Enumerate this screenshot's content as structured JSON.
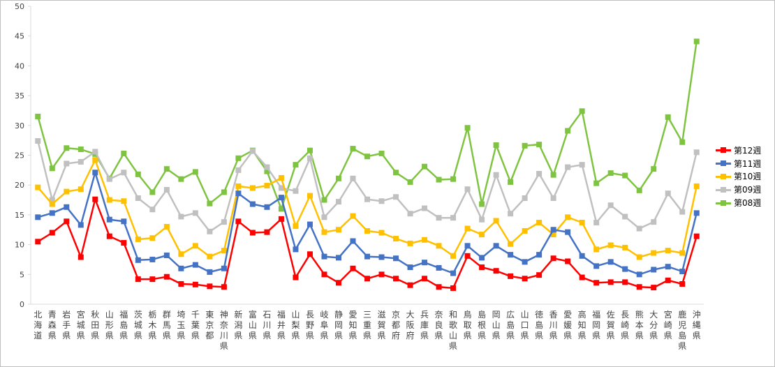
{
  "chart_data": {
    "type": "line",
    "title": "",
    "xlabel": "",
    "ylabel": "",
    "ylim": [
      0,
      50
    ],
    "yticks": [
      0,
      5,
      10,
      15,
      20,
      25,
      30,
      35,
      40,
      45,
      50
    ],
    "grid": false,
    "legend_position": "right",
    "categories": [
      "北海道",
      "青森県",
      "岩手県",
      "宮城県",
      "秋田県",
      "山形県",
      "福島県",
      "茨城県",
      "栃木県",
      "群馬県",
      "埼玉県",
      "千葉県",
      "東京都",
      "神奈川県",
      "新潟県",
      "富山県",
      "石川県",
      "福井県",
      "山梨県",
      "長野県",
      "岐阜県",
      "静岡県",
      "愛知県",
      "三重県",
      "滋賀県",
      "京都府",
      "大阪府",
      "兵庫県",
      "奈良県",
      "和歌山県",
      "鳥取県",
      "島根県",
      "岡山県",
      "広島県",
      "山口県",
      "徳島県",
      "香川県",
      "愛媛県",
      "高知県",
      "福岡県",
      "佐賀県",
      "長崎県",
      "熊本県",
      "大分県",
      "宮崎県",
      "鹿児島県",
      "沖縄県"
    ],
    "series": [
      {
        "name": "第12週",
        "color": "#ff0000",
        "values": [
          10.5,
          12.0,
          13.9,
          7.9,
          17.6,
          11.4,
          10.3,
          4.2,
          4.2,
          4.6,
          3.4,
          3.3,
          3.0,
          2.9,
          13.9,
          12.0,
          12.1,
          14.3,
          4.5,
          8.4,
          5.0,
          3.6,
          6.0,
          4.3,
          5.0,
          4.3,
          3.2,
          4.3,
          2.9,
          2.7,
          8.1,
          6.2,
          5.6,
          4.7,
          4.3,
          4.9,
          7.7,
          7.2,
          4.5,
          3.6,
          3.7,
          3.7,
          2.9,
          2.8,
          4.0,
          3.4,
          11.4
        ]
      },
      {
        "name": "第11週",
        "color": "#4472c4",
        "values": [
          14.6,
          15.3,
          16.3,
          13.3,
          22.1,
          14.2,
          13.9,
          7.4,
          7.5,
          8.2,
          6.0,
          6.6,
          5.4,
          6.0,
          18.6,
          16.8,
          16.3,
          17.9,
          9.2,
          13.4,
          8.0,
          7.8,
          10.6,
          8.0,
          7.9,
          7.7,
          6.2,
          7.0,
          6.1,
          5.2,
          9.8,
          7.8,
          9.8,
          8.3,
          7.1,
          8.3,
          12.5,
          12.1,
          8.1,
          6.4,
          7.1,
          5.9,
          5.0,
          5.8,
          6.3,
          5.5,
          15.3
        ]
      },
      {
        "name": "第10週",
        "color": "#ffc000",
        "values": [
          19.6,
          16.8,
          18.9,
          19.3,
          24.2,
          17.5,
          17.3,
          10.9,
          11.1,
          13.0,
          8.4,
          9.8,
          8.0,
          9.0,
          19.8,
          19.5,
          19.9,
          21.2,
          13.1,
          18.2,
          12.1,
          12.5,
          14.8,
          12.3,
          12.0,
          11.0,
          10.2,
          10.8,
          9.8,
          8.1,
          12.7,
          11.7,
          14.0,
          10.1,
          12.3,
          13.7,
          11.7,
          14.6,
          13.7,
          9.2,
          9.9,
          9.5,
          7.9,
          8.6,
          9.0,
          8.6,
          19.8
        ]
      },
      {
        "name": "第09週",
        "color": "#c0c0c0",
        "values": [
          27.4,
          17.5,
          23.6,
          23.9,
          25.6,
          21.0,
          22.1,
          17.8,
          15.9,
          19.2,
          14.7,
          15.3,
          12.2,
          13.8,
          22.5,
          25.7,
          23.0,
          19.5,
          19.0,
          24.5,
          14.6,
          17.2,
          21.1,
          17.6,
          17.3,
          18.0,
          15.2,
          16.1,
          14.5,
          14.5,
          19.3,
          14.2,
          21.7,
          15.2,
          17.8,
          21.9,
          17.8,
          23.0,
          23.4,
          13.7,
          16.6,
          14.7,
          12.7,
          13.8,
          18.6,
          15.5,
          25.5
        ]
      },
      {
        "name": "第08週",
        "color": "#7fc441",
        "values": [
          31.5,
          22.8,
          26.2,
          26.0,
          25.2,
          21.1,
          25.3,
          21.8,
          18.8,
          22.7,
          21.0,
          22.2,
          16.9,
          18.8,
          24.5,
          25.8,
          22.3,
          16.0,
          23.4,
          25.8,
          17.5,
          21.1,
          26.1,
          24.8,
          25.3,
          22.1,
          20.5,
          23.1,
          20.9,
          21.0,
          29.6,
          16.8,
          26.7,
          20.5,
          26.6,
          26.8,
          21.7,
          29.1,
          32.4,
          20.3,
          22.0,
          21.6,
          19.1,
          22.7,
          31.4,
          27.2,
          44.1
        ]
      }
    ]
  }
}
